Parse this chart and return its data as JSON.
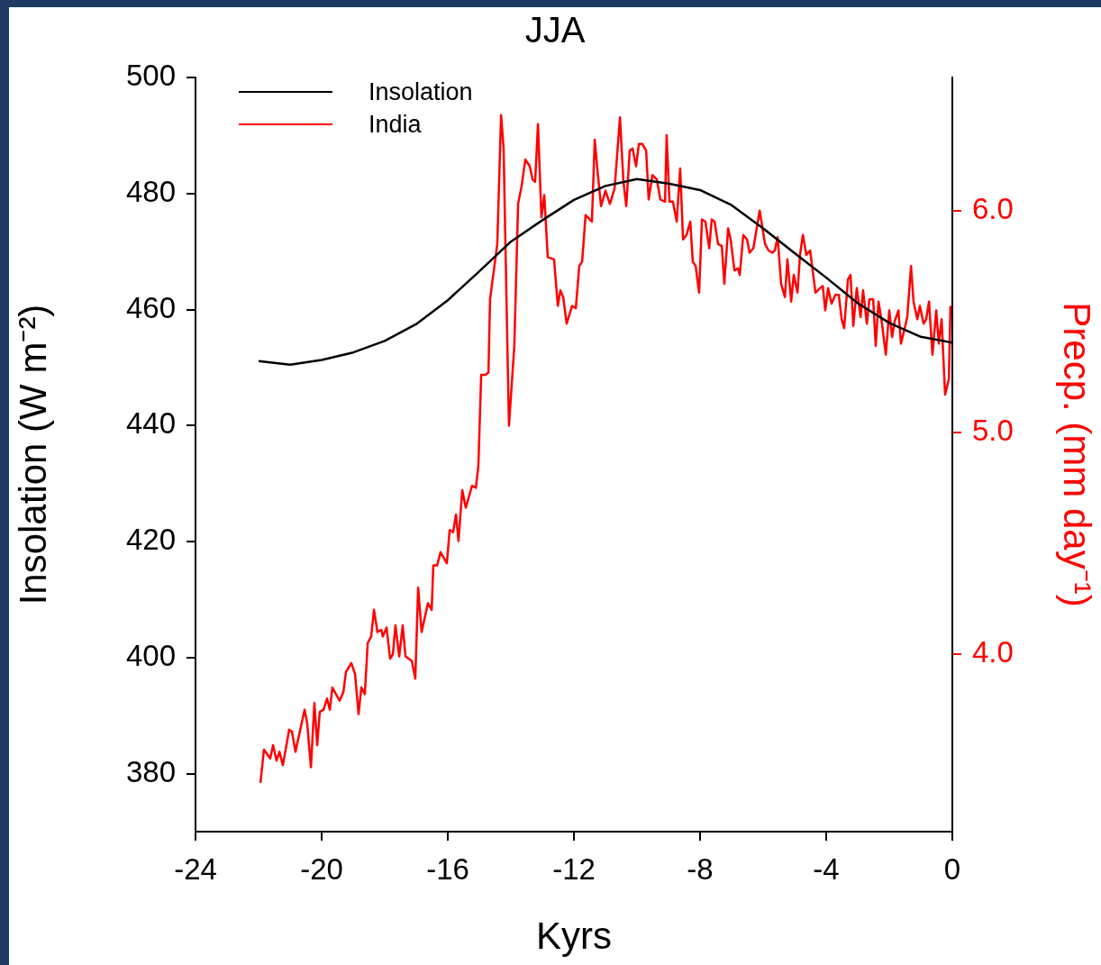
{
  "chart_data": {
    "type": "line",
    "title": "JJA",
    "xlabel": "Kyrs",
    "ylabel": "Insolation (W m⁻²)",
    "y2label": "Precp. (mm day⁻¹)",
    "xlim": [
      -24,
      0
    ],
    "xticks": [
      -24,
      -20,
      -16,
      -12,
      -8,
      -4,
      0
    ],
    "ylim": [
      370,
      500
    ],
    "yticks": [
      380,
      400,
      420,
      440,
      460,
      480,
      500
    ],
    "y2lim": [
      3.2,
      6.6
    ],
    "y2ticks": [
      {
        "value": 4,
        "label": "4.0"
      },
      {
        "value": 5,
        "label": "5.0"
      },
      {
        "value": 6,
        "label": "6.0"
      }
    ],
    "grid": false,
    "legend": "top left",
    "marker": "none",
    "line_style": "solid",
    "series": [
      {
        "name": "Insolation",
        "color": "#000000",
        "x": [
          -22,
          -21,
          -20,
          -19,
          -18,
          -17,
          -16,
          -15,
          -14,
          -13,
          -12,
          -11,
          -10,
          -9,
          -8,
          -7,
          -6,
          -5,
          -4,
          -3,
          -2,
          -1,
          0
        ],
        "values": [
          451.1,
          450.5,
          451.3,
          452.6,
          454.6,
          457.5,
          461.6,
          466.6,
          471.7,
          475.4,
          478.9,
          481.3,
          482.5,
          481.7,
          480.6,
          478.0,
          474.0,
          469.7,
          465.5,
          461.1,
          457.7,
          455.3,
          454.3
        ]
      },
      {
        "name": "India",
        "color": "#ff0000",
        "axis": "y2",
        "x": [
          -21.94,
          -21.83,
          -21.63,
          -21.54,
          -21.43,
          -21.34,
          -21.23,
          -21.03,
          -20.94,
          -20.83,
          -20.54,
          -20.46,
          -20.34,
          -20.23,
          -20.14,
          -20.06,
          -19.94,
          -19.83,
          -19.74,
          -19.66,
          -19.43,
          -19.31,
          -19.23,
          -19.06,
          -18.94,
          -18.83,
          -18.74,
          -18.63,
          -18.54,
          -18.43,
          -18.34,
          -18.23,
          -18.11,
          -18.06,
          -17.94,
          -17.83,
          -17.74,
          -17.66,
          -17.54,
          -17.43,
          -17.34,
          -17.14,
          -17.03,
          -16.94,
          -16.83,
          -16.63,
          -16.51,
          -16.46,
          -16.34,
          -16.23,
          -16.03,
          -15.94,
          -15.83,
          -15.74,
          -15.66,
          -15.54,
          -15.43,
          -15.31,
          -15.23,
          -15.11,
          -15.03,
          -14.94,
          -14.8,
          -14.71,
          -14.66,
          -14.43,
          -14.31,
          -14.23,
          -14.11,
          -14.06,
          -13.89,
          -13.77,
          -13.66,
          -13.54,
          -13.4,
          -13.31,
          -13.23,
          -13.14,
          -13.03,
          -12.94,
          -12.83,
          -12.63,
          -12.51,
          -12.43,
          -12.34,
          -12.23,
          -12.06,
          -11.94,
          -11.83,
          -11.74,
          -11.63,
          -11.43,
          -11.34,
          -11.26,
          -11.14,
          -11.0,
          -10.86,
          -10.71,
          -10.54,
          -10.43,
          -10.34,
          -10.23,
          -10.14,
          -10.03,
          -9.94,
          -9.83,
          -9.71,
          -9.63,
          -9.51,
          -9.37,
          -9.26,
          -9.11,
          -9.06,
          -8.97,
          -8.86,
          -8.74,
          -8.63,
          -8.54,
          -8.43,
          -8.31,
          -8.23,
          -8.14,
          -8.03,
          -7.94,
          -7.83,
          -7.71,
          -7.63,
          -7.54,
          -7.43,
          -7.31,
          -7.23,
          -7.11,
          -7.03,
          -6.91,
          -6.8,
          -6.74,
          -6.63,
          -6.51,
          -6.43,
          -6.31,
          -6.11,
          -5.94,
          -5.83,
          -5.71,
          -5.63,
          -5.54,
          -5.43,
          -5.31,
          -5.23,
          -5.11,
          -5.03,
          -4.91,
          -4.83,
          -4.74,
          -4.63,
          -4.51,
          -4.34,
          -4.2,
          -4.11,
          -4.03,
          -3.94,
          -3.83,
          -3.71,
          -3.6,
          -3.51,
          -3.43,
          -3.31,
          -3.23,
          -3.14,
          -3.03,
          -2.91,
          -2.83,
          -2.71,
          -2.63,
          -2.51,
          -2.43,
          -2.34,
          -2.23,
          -2.11,
          -2.0,
          -1.91,
          -1.83,
          -1.71,
          -1.63,
          -1.51,
          -1.43,
          -1.31,
          -1.23,
          -1.11,
          -1.03,
          -0.91,
          -0.83,
          -0.74,
          -0.63,
          -0.51,
          -0.43,
          -0.34,
          -0.23,
          -0.11,
          -0.06
        ],
        "values": [
          3.42,
          3.57,
          3.53,
          3.59,
          3.52,
          3.56,
          3.5,
          3.66,
          3.65,
          3.56,
          3.75,
          3.69,
          3.49,
          3.78,
          3.59,
          3.74,
          3.75,
          3.8,
          3.75,
          3.85,
          3.79,
          3.83,
          3.92,
          3.96,
          3.91,
          3.73,
          3.85,
          3.82,
          4.05,
          4.08,
          4.2,
          4.1,
          4.11,
          4.08,
          4.12,
          3.98,
          4.0,
          4.13,
          3.99,
          4.13,
          3.99,
          3.97,
          3.89,
          4.3,
          4.1,
          4.23,
          4.2,
          4.4,
          4.4,
          4.46,
          4.41,
          4.56,
          4.55,
          4.63,
          4.51,
          4.74,
          4.66,
          4.72,
          4.76,
          4.75,
          4.85,
          5.26,
          5.26,
          5.27,
          5.6,
          5.85,
          6.43,
          6.28,
          5.39,
          5.03,
          5.39,
          6.03,
          6.11,
          6.23,
          6.2,
          6.14,
          6.13,
          6.39,
          5.97,
          6.07,
          5.79,
          5.78,
          5.57,
          5.64,
          5.61,
          5.49,
          5.57,
          5.56,
          5.75,
          5.77,
          5.98,
          5.95,
          6.32,
          6.19,
          6.02,
          6.09,
          6.03,
          6.1,
          6.42,
          6.13,
          6.02,
          6.27,
          6.28,
          6.2,
          6.3,
          6.3,
          6.27,
          6.05,
          6.16,
          6.14,
          6.05,
          6.04,
          6.34,
          6.04,
          6.04,
          5.95,
          6.19,
          5.87,
          5.89,
          5.95,
          5.77,
          5.75,
          5.63,
          5.96,
          5.95,
          5.83,
          5.96,
          5.95,
          5.85,
          5.84,
          5.67,
          5.92,
          5.87,
          5.73,
          5.74,
          5.71,
          5.89,
          5.87,
          5.81,
          5.83,
          6.0,
          5.85,
          5.82,
          5.81,
          5.82,
          5.88,
          5.67,
          5.61,
          5.78,
          5.59,
          5.71,
          5.63,
          5.8,
          5.89,
          5.8,
          5.82,
          5.63,
          5.65,
          5.66,
          5.55,
          5.65,
          5.58,
          5.62,
          5.62,
          5.51,
          5.47,
          5.69,
          5.71,
          5.48,
          5.65,
          5.52,
          5.64,
          5.49,
          5.6,
          5.6,
          5.39,
          5.59,
          5.49,
          5.35,
          5.55,
          5.43,
          5.5,
          5.55,
          5.4,
          5.47,
          5.52,
          5.75,
          5.59,
          5.51,
          5.57,
          5.49,
          5.51,
          5.59,
          5.35,
          5.55,
          5.4,
          5.51,
          5.17,
          5.24,
          5.57
        ]
      }
    ]
  }
}
